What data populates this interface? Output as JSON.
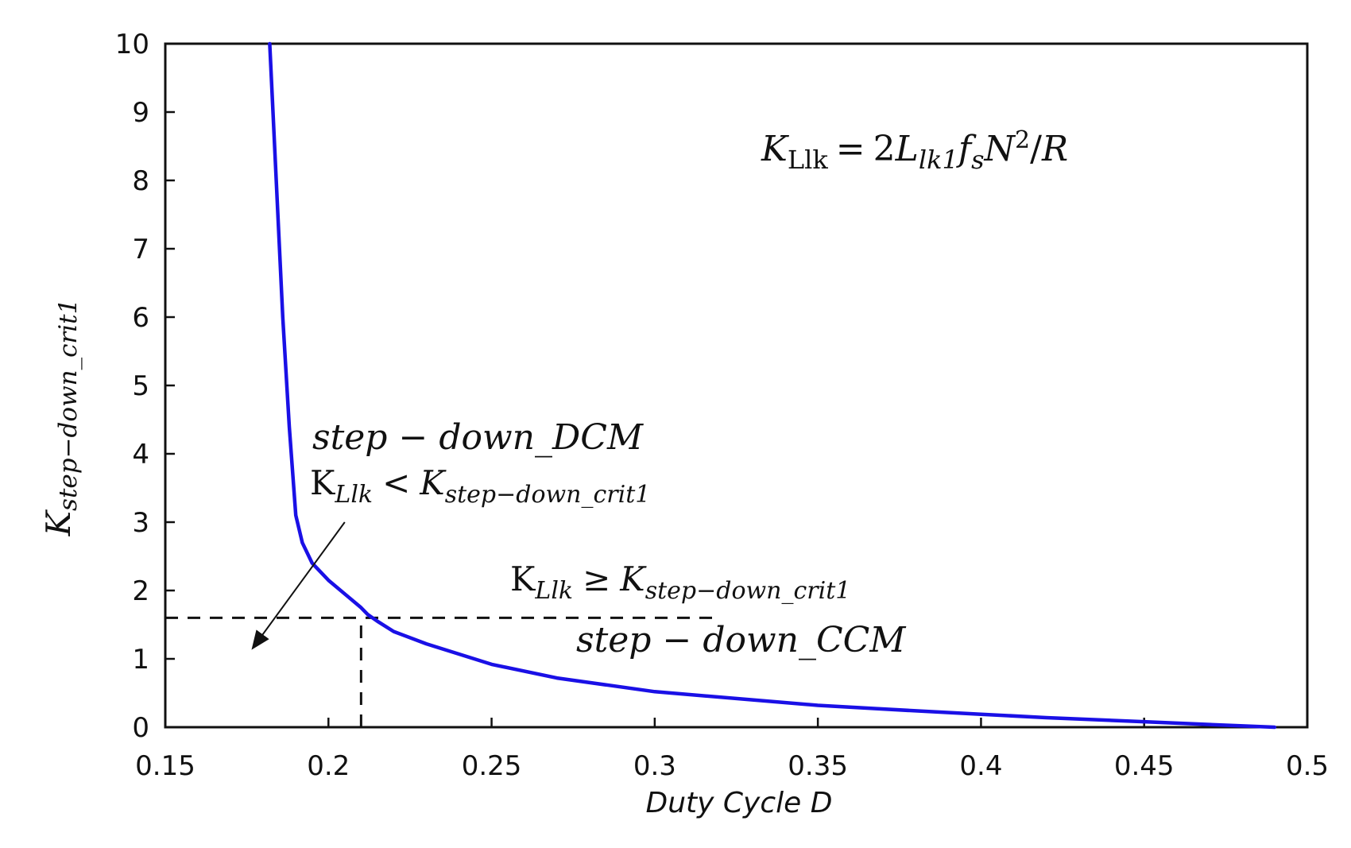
{
  "chart_data": {
    "type": "line",
    "title": "",
    "xlabel": "Duty Cycle D",
    "ylabel": {
      "base": "K",
      "sub": "step−down_crit1"
    },
    "xlim": [
      0.15,
      0.5
    ],
    "ylim": [
      0,
      10
    ],
    "xticks": [
      "0.15",
      "0.2",
      "0.25",
      "0.3",
      "0.35",
      "0.4",
      "0.45",
      "0.5"
    ],
    "yticks": [
      "0",
      "1",
      "2",
      "3",
      "4",
      "5",
      "6",
      "7",
      "8",
      "9",
      "10"
    ],
    "grid": false,
    "series": [
      {
        "color": "#1a10e6",
        "x": [
          0.182,
          0.184,
          0.186,
          0.188,
          0.19,
          0.192,
          0.195,
          0.2,
          0.205,
          0.21,
          0.212,
          0.215,
          0.22,
          0.23,
          0.25,
          0.27,
          0.3,
          0.33,
          0.35,
          0.38,
          0.4,
          0.42,
          0.45,
          0.47,
          0.49
        ],
        "y": [
          10.0,
          8.0,
          6.0,
          4.4,
          3.1,
          2.7,
          2.4,
          2.15,
          1.95,
          1.75,
          1.65,
          1.55,
          1.4,
          1.22,
          0.92,
          0.72,
          0.52,
          0.4,
          0.32,
          0.24,
          0.19,
          0.14,
          0.08,
          0.04,
          0.0
        ]
      }
    ],
    "reference_lines": {
      "color": "#111111",
      "horizontal": {
        "y": 1.6,
        "x_from": 0.15,
        "x_to": 0.32
      },
      "vertical": {
        "x": 0.21,
        "y_from": 0,
        "y_to": 1.6
      }
    },
    "arrow": {
      "from": [
        0.205,
        3.0
      ],
      "to": [
        0.177,
        1.17
      ]
    },
    "annotations": {
      "formula": {
        "lhs_base": "K",
        "lhs_sub": "Llk",
        "eq": "=",
        "two": "2",
        "L": "L",
        "L_sub": "lk1",
        "f": "f",
        "f_sub": "s",
        "N": "N",
        "N_sup": "2",
        "slash": "/",
        "R": "R"
      },
      "dcm_title": {
        "a": "step",
        "op": "−",
        "b": "down_DCM"
      },
      "dcm_condition": {
        "lhs_base": "K",
        "lhs_sub": "Llk",
        "rel": "<",
        "rhs_base": "K",
        "rhs_sub": "step−down_crit1"
      },
      "ccm_condition": {
        "lhs_base": "K",
        "lhs_sub": "Llk",
        "rel": "≥",
        "rhs_base": "K",
        "rhs_sub": "step−down_crit1"
      },
      "ccm_title": {
        "a": "step",
        "op": "−",
        "b": "down_CCM"
      }
    }
  }
}
